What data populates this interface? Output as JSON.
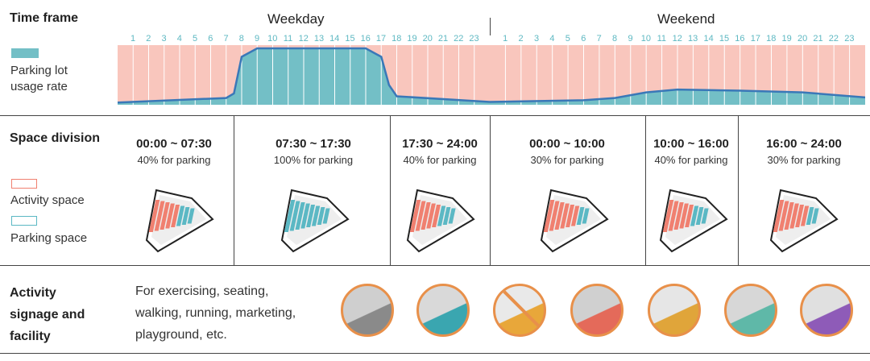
{
  "legend": {
    "time_frame": "Time frame",
    "usage_label": "Parking lot\nusage rate",
    "space_division": "Space division",
    "activity_space": "Activity space",
    "parking_space": "Parking space",
    "activity_title": "Activity\nsignage and\nfacility",
    "activity_text": "For exercising, seating,\nwalking, running, marketing,\nplayground, etc."
  },
  "headers": {
    "weekday": "Weekday",
    "weekend": "Weekend"
  },
  "hours_weekday": [
    "1",
    "2",
    "3",
    "4",
    "5",
    "6",
    "7",
    "8",
    "9",
    "10",
    "11",
    "12",
    "13",
    "14",
    "15",
    "16",
    "17",
    "18",
    "19",
    "20",
    "21",
    "22",
    "23"
  ],
  "hours_weekend": [
    "1",
    "2",
    "3",
    "4",
    "5",
    "6",
    "7",
    "8",
    "9",
    "10",
    "11",
    "12",
    "13",
    "14",
    "15",
    "16",
    "17",
    "18",
    "19",
    "20",
    "21",
    "22",
    "23"
  ],
  "divisions": [
    {
      "time": "00:00 ~ 07:30",
      "pct": "40% for parking"
    },
    {
      "time": "07:30 ~ 17:30",
      "pct": "100% for parking"
    },
    {
      "time": "17:30 ~ 24:00",
      "pct": "40% for parking"
    },
    {
      "time": "00:00 ~ 10:00",
      "pct": "30% for parking"
    },
    {
      "time": "10:00 ~ 16:00",
      "pct": "40% for parking"
    },
    {
      "time": "16:00 ~ 24:00",
      "pct": "30% for parking"
    }
  ],
  "colors": {
    "usage": "#73bfc6",
    "background": "#f9c6bd",
    "activity": "#f08070",
    "parking": "#5bb8c4"
  },
  "chart_data": {
    "type": "area",
    "series": [
      {
        "name": "Weekday",
        "x": [
          0,
          7,
          7.5,
          8,
          9,
          16,
          17,
          17.5,
          18,
          24
        ],
        "values": [
          0.04,
          0.12,
          0.2,
          0.85,
          1.0,
          1.0,
          0.85,
          0.35,
          0.15,
          0.05
        ]
      },
      {
        "name": "Weekend",
        "x": [
          0,
          6,
          8,
          10,
          12,
          16,
          20,
          24
        ],
        "values": [
          0.05,
          0.08,
          0.12,
          0.22,
          0.27,
          0.25,
          0.22,
          0.13
        ]
      }
    ],
    "ylim": [
      0,
      1
    ]
  }
}
